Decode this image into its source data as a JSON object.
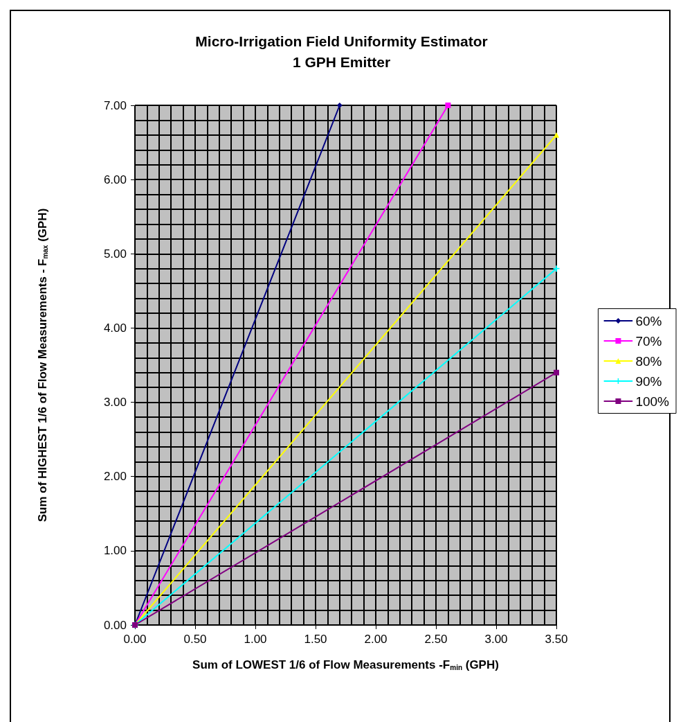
{
  "chart_data": {
    "type": "line",
    "title": "Micro-Irrigation Field Uniformity Estimator",
    "subtitle": "1 GPH Emitter",
    "xlabel": "Sum of LOWEST 1/6 of Flow Measurements -F$_{min}$ (GPH)",
    "ylabel": "Sum of HIGHEST 1/6 of Flow Measurements - F$_{max}$ (GPH)",
    "xlim": [
      0,
      3.5
    ],
    "xticks": [
      {
        "value": 0,
        "label": "0.00"
      },
      {
        "value": 0.5,
        "label": "0.50"
      },
      {
        "value": 1,
        "label": "1.00"
      },
      {
        "value": 1.5,
        "label": "1.50"
      },
      {
        "value": 2,
        "label": "2.00"
      },
      {
        "value": 2.5,
        "label": "2.50"
      },
      {
        "value": 3,
        "label": "3.00"
      },
      {
        "value": 3.5,
        "label": "3.50"
      }
    ],
    "ylim": [
      0,
      7
    ],
    "yticks": [
      {
        "value": 0,
        "label": "0.00"
      },
      {
        "value": 1,
        "label": "1.00"
      },
      {
        "value": 2,
        "label": "2.00"
      },
      {
        "value": 3,
        "label": "3.00"
      },
      {
        "value": 4,
        "label": "4.00"
      },
      {
        "value": 5,
        "label": "5.00"
      },
      {
        "value": 6,
        "label": "6.00"
      },
      {
        "value": 7,
        "label": "7.00"
      }
    ],
    "grid": true,
    "legend": "right",
    "line_style": "solid",
    "series": [
      {
        "name": "60%",
        "color": "#000080",
        "marker": "diamond",
        "x": [
          0,
          1.7
        ],
        "values": [
          0,
          7
        ]
      },
      {
        "name": "70%",
        "color": "#ff00ff",
        "marker": "square",
        "x": [
          0,
          2.6
        ],
        "values": [
          0,
          7
        ]
      },
      {
        "name": "80%",
        "color": "#ffff00",
        "marker": "triangle",
        "x": [
          0,
          3.5
        ],
        "values": [
          0,
          6.6
        ]
      },
      {
        "name": "90%",
        "color": "#00ffff",
        "marker": "cross",
        "x": [
          0,
          3.5
        ],
        "values": [
          0,
          4.8
        ]
      },
      {
        "name": "100%",
        "color": "#800080",
        "marker": "square",
        "x": [
          0,
          3.5
        ],
        "values": [
          0,
          3.4
        ]
      }
    ]
  }
}
